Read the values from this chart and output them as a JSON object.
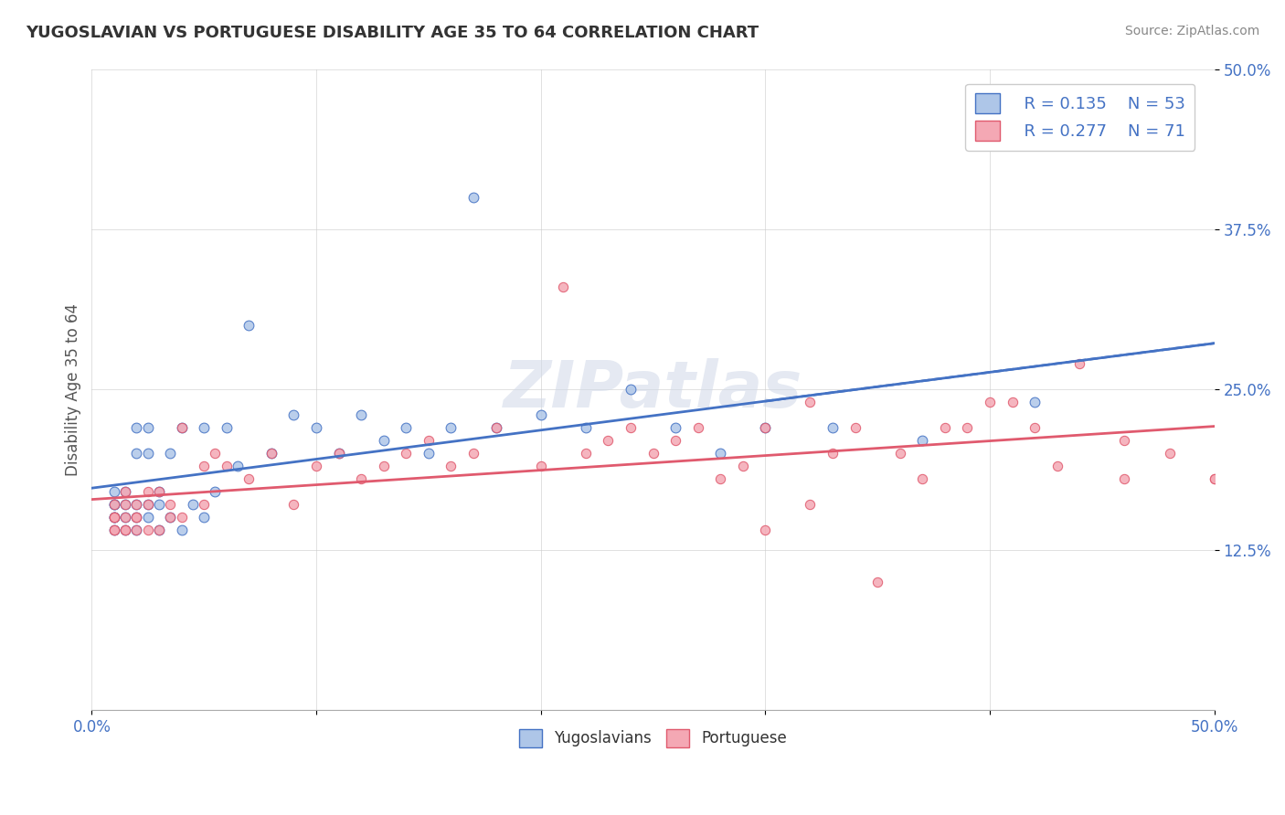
{
  "title": "YUGOSLAVIAN VS PORTUGUESE DISABILITY AGE 35 TO 64 CORRELATION CHART",
  "source": "Source: ZipAtlas.com",
  "xlabel": "",
  "ylabel": "Disability Age 35 to 64",
  "xlim": [
    0.0,
    0.5
  ],
  "ylim": [
    0.0,
    0.5
  ],
  "xtick_labels": [
    "0.0%",
    "50.0%"
  ],
  "ytick_labels": [
    "12.5%",
    "25.0%",
    "37.5%",
    "50.0%"
  ],
  "ytick_vals": [
    0.125,
    0.25,
    0.375,
    0.5
  ],
  "legend_r_yug": "0.135",
  "legend_n_yug": "53",
  "legend_r_por": "0.277",
  "legend_n_por": "71",
  "color_yug": "#aec6e8",
  "color_por": "#f4a8b4",
  "line_color_yug": "#4472c4",
  "line_color_por": "#e05a6e",
  "watermark": "ZIPatlas",
  "background_color": "#ffffff",
  "yugoslavian_x": [
    0.01,
    0.01,
    0.01,
    0.01,
    0.01,
    0.01,
    0.015,
    0.015,
    0.015,
    0.015,
    0.02,
    0.02,
    0.02,
    0.02,
    0.02,
    0.025,
    0.025,
    0.025,
    0.025,
    0.03,
    0.03,
    0.03,
    0.035,
    0.035,
    0.04,
    0.04,
    0.045,
    0.05,
    0.05,
    0.055,
    0.06,
    0.065,
    0.07,
    0.08,
    0.09,
    0.1,
    0.11,
    0.12,
    0.13,
    0.14,
    0.15,
    0.16,
    0.17,
    0.18,
    0.2,
    0.22,
    0.24,
    0.26,
    0.28,
    0.3,
    0.33,
    0.37,
    0.42
  ],
  "yugoslavian_y": [
    0.14,
    0.15,
    0.15,
    0.16,
    0.16,
    0.17,
    0.14,
    0.15,
    0.16,
    0.17,
    0.14,
    0.15,
    0.16,
    0.2,
    0.22,
    0.15,
    0.16,
    0.2,
    0.22,
    0.14,
    0.16,
    0.17,
    0.15,
    0.2,
    0.14,
    0.22,
    0.16,
    0.15,
    0.22,
    0.17,
    0.22,
    0.19,
    0.3,
    0.2,
    0.23,
    0.22,
    0.2,
    0.23,
    0.21,
    0.22,
    0.2,
    0.22,
    0.4,
    0.22,
    0.23,
    0.22,
    0.25,
    0.22,
    0.2,
    0.22,
    0.22,
    0.21,
    0.24
  ],
  "portuguese_x": [
    0.01,
    0.01,
    0.01,
    0.01,
    0.01,
    0.01,
    0.015,
    0.015,
    0.015,
    0.015,
    0.015,
    0.02,
    0.02,
    0.02,
    0.02,
    0.025,
    0.025,
    0.025,
    0.03,
    0.03,
    0.035,
    0.035,
    0.04,
    0.04,
    0.05,
    0.05,
    0.055,
    0.06,
    0.07,
    0.08,
    0.09,
    0.1,
    0.11,
    0.12,
    0.13,
    0.14,
    0.15,
    0.16,
    0.17,
    0.18,
    0.2,
    0.21,
    0.22,
    0.23,
    0.24,
    0.25,
    0.26,
    0.27,
    0.28,
    0.29,
    0.3,
    0.32,
    0.33,
    0.34,
    0.36,
    0.38,
    0.4,
    0.42,
    0.44,
    0.46,
    0.3,
    0.32,
    0.35,
    0.37,
    0.39,
    0.41,
    0.43,
    0.46,
    0.48,
    0.5,
    0.5
  ],
  "portuguese_y": [
    0.14,
    0.14,
    0.15,
    0.15,
    0.15,
    0.16,
    0.14,
    0.14,
    0.15,
    0.16,
    0.17,
    0.14,
    0.15,
    0.15,
    0.16,
    0.14,
    0.16,
    0.17,
    0.14,
    0.17,
    0.15,
    0.16,
    0.15,
    0.22,
    0.16,
    0.19,
    0.2,
    0.19,
    0.18,
    0.2,
    0.16,
    0.19,
    0.2,
    0.18,
    0.19,
    0.2,
    0.21,
    0.19,
    0.2,
    0.22,
    0.19,
    0.33,
    0.2,
    0.21,
    0.22,
    0.2,
    0.21,
    0.22,
    0.18,
    0.19,
    0.22,
    0.24,
    0.2,
    0.22,
    0.2,
    0.22,
    0.24,
    0.22,
    0.27,
    0.18,
    0.14,
    0.16,
    0.1,
    0.18,
    0.22,
    0.24,
    0.19,
    0.21,
    0.2,
    0.18,
    0.18
  ]
}
